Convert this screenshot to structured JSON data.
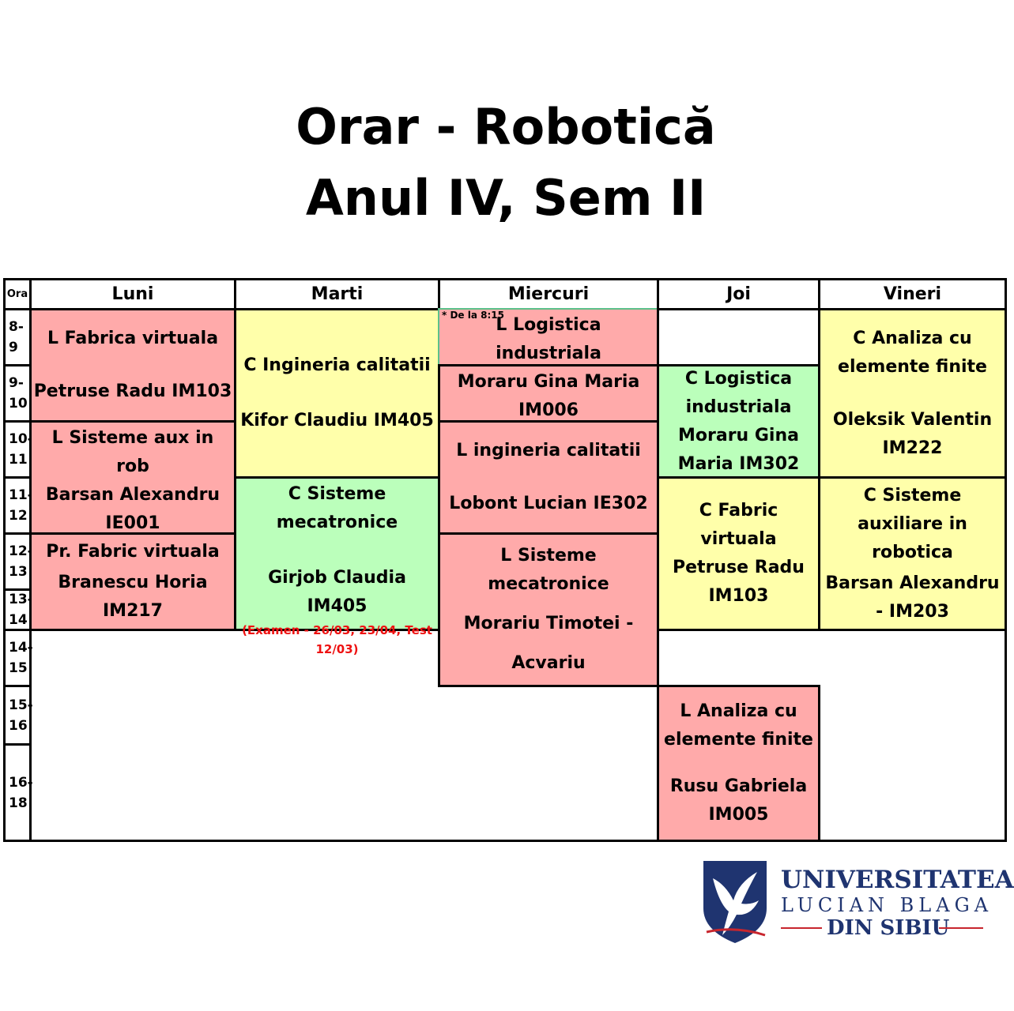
{
  "title": {
    "line1": "Orar - Robotică",
    "line2": "Anul IV, Sem II"
  },
  "header": {
    "ora": "Ora",
    "days": [
      "Luni",
      "Marti",
      "Miercuri",
      "Joi",
      "Vineri"
    ]
  },
  "hours": [
    {
      "a": "8-",
      "b": "9"
    },
    {
      "a": "9-",
      "b": "10"
    },
    {
      "a": "10-",
      "b": "11"
    },
    {
      "a": "11-",
      "b": "12"
    },
    {
      "a": "12-",
      "b": "13"
    },
    {
      "a": "13-",
      "b": "14"
    },
    {
      "a": "14-",
      "b": "15"
    },
    {
      "a": "15-",
      "b": "16"
    },
    {
      "a": "16-",
      "b": "18"
    }
  ],
  "luni": [
    {
      "line1": "L Fabrica virtuala",
      "line2": "Petruse Radu IM103"
    },
    {
      "line1": "L Sisteme aux in rob",
      "line2": "Barsan Alexandru IE001"
    },
    {
      "line1": "Pr. Fabric virtuala",
      "line2": "Branescu Horia IM217"
    }
  ],
  "marti": [
    {
      "line1": "C Ingineria calitatii",
      "line2": "Kifor Claudiu IM405"
    },
    {
      "line1": "C Sisteme mecatronice",
      "line2": "Girjob Claudia IM405",
      "note": "(Examen - 26/03, 23/04, Test 12/03)"
    }
  ],
  "miercuri": [
    {
      "star": "* De la 8:15",
      "line1": "L Logistica industriala"
    },
    {
      "line1": "Moraru Gina Maria IM006"
    },
    {
      "line1": "L ingineria calitatii",
      "line2": "Lobont Lucian IE302"
    },
    {
      "line1": "L Sisteme mecatronice",
      "line2": "Morariu Timotei -",
      "line3": "Acvariu"
    }
  ],
  "joi": [
    {
      "line1": "C Logistica industriala Moraru Gina Maria IM302"
    },
    {
      "line1": "C Fabric virtuala Petruse Radu IM103"
    },
    {
      "line1": "L Analiza cu elemente finite",
      "line2": "Rusu Gabriela IM005"
    }
  ],
  "vineri": [
    {
      "line1": "C Analiza cu elemente finite",
      "line2": "Oleksik Valentin IM222"
    },
    {
      "line1": "C Sisteme auxiliare in robotica",
      "line2": "Barsan Alexandru - IM203"
    }
  ],
  "logo": {
    "line1": "UNIVERSITATEA",
    "line2": "LUCIAN BLAGA",
    "line3": "DIN SIBIU"
  },
  "colors": {
    "lab": "#ffaaaa",
    "course": "#ffffaa",
    "course_alt": "#bbffbb",
    "note": "#ee1111",
    "brand": "#1f3470"
  }
}
